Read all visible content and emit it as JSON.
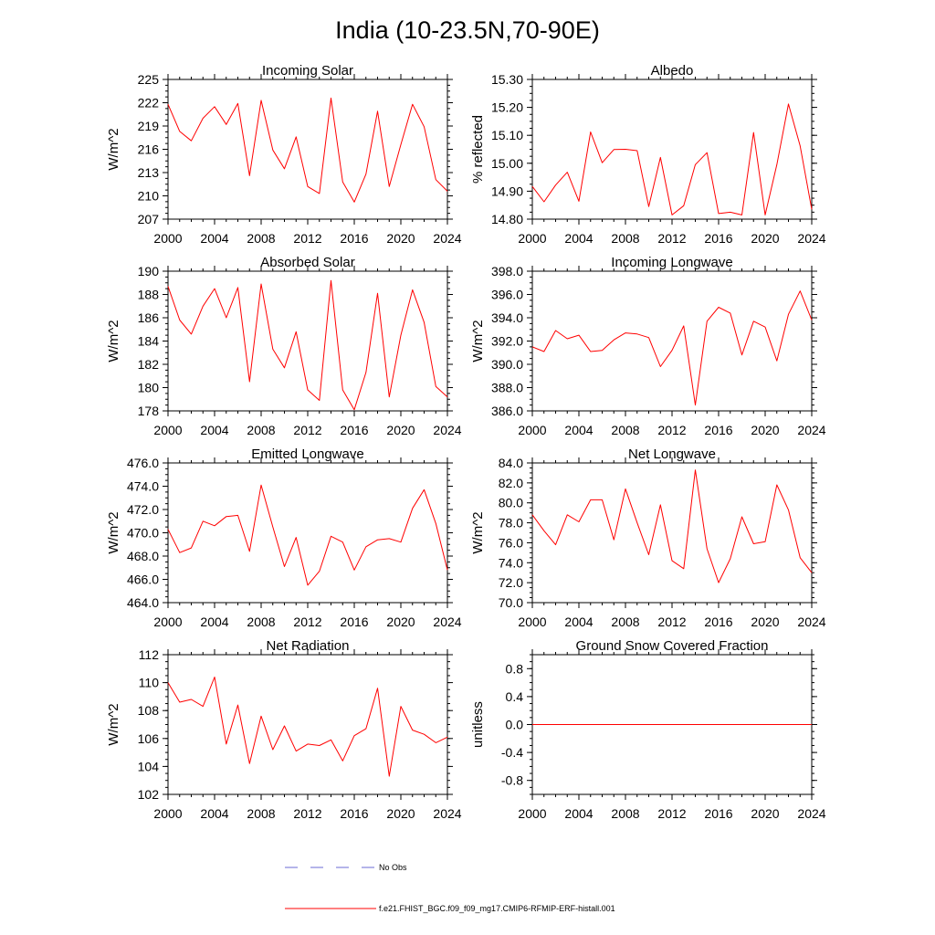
{
  "figure": {
    "title": "India (10-23.5N,70-90E)"
  },
  "legend": {
    "obs_label": "No Obs",
    "model_label": "f.e21.FHIST_BGC.f09_f09_mg17.CMIP6-RFMIP-ERF-histall.001",
    "obs_color": "#6b6bd6",
    "model_color": "#ff0000"
  },
  "chart_data": [
    {
      "type": "line",
      "title": "Incoming Solar",
      "ylabel": "W/m^2",
      "xlim": [
        2000,
        2024
      ],
      "ylim": [
        207,
        225
      ],
      "yticks": [
        207,
        210,
        213,
        216,
        219,
        222,
        225
      ],
      "ytick_labels": [
        "207",
        "210",
        "213",
        "216",
        "219",
        "222",
        "225"
      ],
      "xticks": [
        2000,
        2004,
        2008,
        2012,
        2016,
        2020,
        2024
      ],
      "ylabel_side": "left",
      "series": [
        {
          "x": [
            2000,
            2001,
            2002,
            2003,
            2004,
            2005,
            2006,
            2007,
            2008,
            2009,
            2010,
            2011,
            2012,
            2013,
            2014,
            2015,
            2016,
            2017,
            2018,
            2019,
            2020,
            2021,
            2022,
            2023,
            2024
          ],
          "y": [
            221.8,
            218.3,
            217.1,
            220.0,
            221.5,
            219.2,
            221.9,
            212.6,
            222.3,
            215.9,
            213.5,
            217.6,
            211.2,
            210.3,
            222.6,
            211.8,
            209.2,
            212.8,
            220.9,
            211.2,
            216.6,
            221.8,
            218.9,
            212.1,
            210.6
          ]
        }
      ]
    },
    {
      "type": "line",
      "title": "Albedo",
      "ylabel": "% reflected",
      "xlim": [
        2000,
        2024
      ],
      "ylim": [
        14.8,
        15.3
      ],
      "yticks": [
        14.8,
        14.9,
        15.0,
        15.1,
        15.2,
        15.3
      ],
      "ytick_labels": [
        "14.80",
        "14.90",
        "15.00",
        "15.10",
        "15.20",
        "15.30"
      ],
      "xticks": [
        2000,
        2004,
        2008,
        2012,
        2016,
        2020,
        2024
      ],
      "ylabel_side": "left",
      "series": [
        {
          "x": [
            2000,
            2001,
            2002,
            2003,
            2004,
            2005,
            2006,
            2007,
            2008,
            2009,
            2010,
            2011,
            2012,
            2013,
            2014,
            2015,
            2016,
            2017,
            2018,
            2019,
            2020,
            2021,
            2022,
            2023,
            2024
          ],
          "y": [
            14.917,
            14.862,
            14.922,
            14.968,
            14.864,
            15.112,
            15.002,
            15.049,
            15.05,
            15.045,
            14.845,
            15.021,
            14.815,
            14.848,
            14.995,
            15.038,
            14.82,
            14.825,
            14.815,
            15.11,
            14.815,
            14.995,
            15.212,
            15.062,
            14.835
          ]
        }
      ]
    },
    {
      "type": "line",
      "title": "Absorbed Solar",
      "ylabel": "W/m^2",
      "xlim": [
        2000,
        2024
      ],
      "ylim": [
        178,
        190
      ],
      "yticks": [
        178,
        180,
        182,
        184,
        186,
        188,
        190
      ],
      "ytick_labels": [
        "178",
        "180",
        "182",
        "184",
        "186",
        "188",
        "190"
      ],
      "xticks": [
        2000,
        2004,
        2008,
        2012,
        2016,
        2020,
        2024
      ],
      "ylabel_side": "left",
      "series": [
        {
          "x": [
            2000,
            2001,
            2002,
            2003,
            2004,
            2005,
            2006,
            2007,
            2008,
            2009,
            2010,
            2011,
            2012,
            2013,
            2014,
            2015,
            2016,
            2017,
            2018,
            2019,
            2020,
            2021,
            2022,
            2023,
            2024
          ],
          "y": [
            188.7,
            185.8,
            184.6,
            187.0,
            188.5,
            186.0,
            188.6,
            180.5,
            188.9,
            183.3,
            181.7,
            184.8,
            179.8,
            178.9,
            189.2,
            179.8,
            178.1,
            181.3,
            188.1,
            179.2,
            184.5,
            188.4,
            185.6,
            180.1,
            179.2
          ]
        }
      ]
    },
    {
      "type": "line",
      "title": "Incoming Longwave",
      "ylabel": "W/m^2",
      "xlim": [
        2000,
        2024
      ],
      "ylim": [
        386,
        398
      ],
      "yticks": [
        386,
        388,
        390,
        392,
        394,
        396,
        398
      ],
      "ytick_labels": [
        "386.0",
        "388.0",
        "390.0",
        "392.0",
        "394.0",
        "396.0",
        "398.0"
      ],
      "xticks": [
        2000,
        2004,
        2008,
        2012,
        2016,
        2020,
        2024
      ],
      "ylabel_side": "left",
      "series": [
        {
          "x": [
            2000,
            2001,
            2002,
            2003,
            2004,
            2005,
            2006,
            2007,
            2008,
            2009,
            2010,
            2011,
            2012,
            2013,
            2014,
            2015,
            2016,
            2017,
            2018,
            2019,
            2020,
            2021,
            2022,
            2023,
            2024
          ],
          "y": [
            391.5,
            391.1,
            392.9,
            392.2,
            392.5,
            391.1,
            391.2,
            392.1,
            392.7,
            392.6,
            392.3,
            389.8,
            391.2,
            393.3,
            386.5,
            393.7,
            394.9,
            394.4,
            390.8,
            393.7,
            393.2,
            390.3,
            394.3,
            396.3,
            393.8
          ]
        }
      ]
    },
    {
      "type": "line",
      "title": "Emitted Longwave",
      "ylabel": "W/m^2",
      "xlim": [
        2000,
        2024
      ],
      "ylim": [
        464,
        476
      ],
      "yticks": [
        464,
        466,
        468,
        470,
        472,
        474,
        476
      ],
      "ytick_labels": [
        "464.0",
        "466.0",
        "468.0",
        "470.0",
        "472.0",
        "474.0",
        "476.0"
      ],
      "xticks": [
        2000,
        2004,
        2008,
        2012,
        2016,
        2020,
        2024
      ],
      "ylabel_side": "left",
      "series": [
        {
          "x": [
            2000,
            2001,
            2002,
            2003,
            2004,
            2005,
            2006,
            2007,
            2008,
            2009,
            2010,
            2011,
            2012,
            2013,
            2014,
            2015,
            2016,
            2017,
            2018,
            2019,
            2020,
            2021,
            2022,
            2023,
            2024
          ],
          "y": [
            470.3,
            468.3,
            468.7,
            471.0,
            470.6,
            471.4,
            471.5,
            468.4,
            474.1,
            470.5,
            467.1,
            469.6,
            465.5,
            466.7,
            469.7,
            469.2,
            466.8,
            468.8,
            469.4,
            469.5,
            469.2,
            472.1,
            473.7,
            470.8,
            466.8
          ]
        }
      ]
    },
    {
      "type": "line",
      "title": "Net Longwave",
      "ylabel": "W/m^2",
      "xlim": [
        2000,
        2024
      ],
      "ylim": [
        70,
        84
      ],
      "yticks": [
        70,
        72,
        74,
        76,
        78,
        80,
        82,
        84
      ],
      "ytick_labels": [
        "70.0",
        "72.0",
        "74.0",
        "76.0",
        "78.0",
        "80.0",
        "82.0",
        "84.0"
      ],
      "xticks": [
        2000,
        2004,
        2008,
        2012,
        2016,
        2020,
        2024
      ],
      "ylabel_side": "left",
      "series": [
        {
          "x": [
            2000,
            2001,
            2002,
            2003,
            2004,
            2005,
            2006,
            2007,
            2008,
            2009,
            2010,
            2011,
            2012,
            2013,
            2014,
            2015,
            2016,
            2017,
            2018,
            2019,
            2020,
            2021,
            2022,
            2023,
            2024
          ],
          "y": [
            78.8,
            77.2,
            75.8,
            78.8,
            78.1,
            80.3,
            80.3,
            76.3,
            81.4,
            78.0,
            74.8,
            79.8,
            74.2,
            73.4,
            83.3,
            75.4,
            72.0,
            74.4,
            78.6,
            75.9,
            76.1,
            81.8,
            79.3,
            74.5,
            73.0
          ]
        }
      ]
    },
    {
      "type": "line",
      "title": "Net Radiation",
      "ylabel": "W/m^2",
      "xlim": [
        2000,
        2024
      ],
      "ylim": [
        102,
        112
      ],
      "yticks": [
        102,
        104,
        106,
        108,
        110,
        112
      ],
      "ytick_labels": [
        "102",
        "104",
        "106",
        "108",
        "110",
        "112"
      ],
      "xticks": [
        2000,
        2004,
        2008,
        2012,
        2016,
        2020,
        2024
      ],
      "ylabel_side": "left",
      "series": [
        {
          "x": [
            2000,
            2001,
            2002,
            2003,
            2004,
            2005,
            2006,
            2007,
            2008,
            2009,
            2010,
            2011,
            2012,
            2013,
            2014,
            2015,
            2016,
            2017,
            2018,
            2019,
            2020,
            2021,
            2022,
            2023,
            2024
          ],
          "y": [
            110.0,
            108.6,
            108.8,
            108.3,
            110.4,
            105.6,
            108.4,
            104.2,
            107.6,
            105.2,
            106.9,
            105.1,
            105.6,
            105.5,
            105.9,
            104.4,
            106.2,
            106.7,
            109.6,
            103.3,
            108.3,
            106.6,
            106.3,
            105.7,
            106.1
          ]
        }
      ]
    },
    {
      "type": "line",
      "title": "Ground Snow Covered Fraction",
      "ylabel": "unitless",
      "xlim": [
        2000,
        2024
      ],
      "ylim": [
        -1.0,
        1.0
      ],
      "yticks": [
        -0.8,
        -0.4,
        0.0,
        0.4,
        0.8
      ],
      "ytick_labels": [
        "-0.8",
        "-0.4",
        "0.0",
        "0.4",
        "0.8"
      ],
      "xticks": [
        2000,
        2004,
        2008,
        2012,
        2016,
        2020,
        2024
      ],
      "ylabel_side": "left",
      "series": [
        {
          "x": [
            2000,
            2001,
            2002,
            2003,
            2004,
            2005,
            2006,
            2007,
            2008,
            2009,
            2010,
            2011,
            2012,
            2013,
            2014,
            2015,
            2016,
            2017,
            2018,
            2019,
            2020,
            2021,
            2022,
            2023,
            2024
          ],
          "y": [
            0,
            0,
            0,
            0,
            0,
            0,
            0,
            0,
            0,
            0,
            0,
            0,
            0,
            0,
            0,
            0,
            0,
            0,
            0,
            0,
            0,
            0,
            0,
            0,
            0
          ]
        }
      ]
    }
  ]
}
